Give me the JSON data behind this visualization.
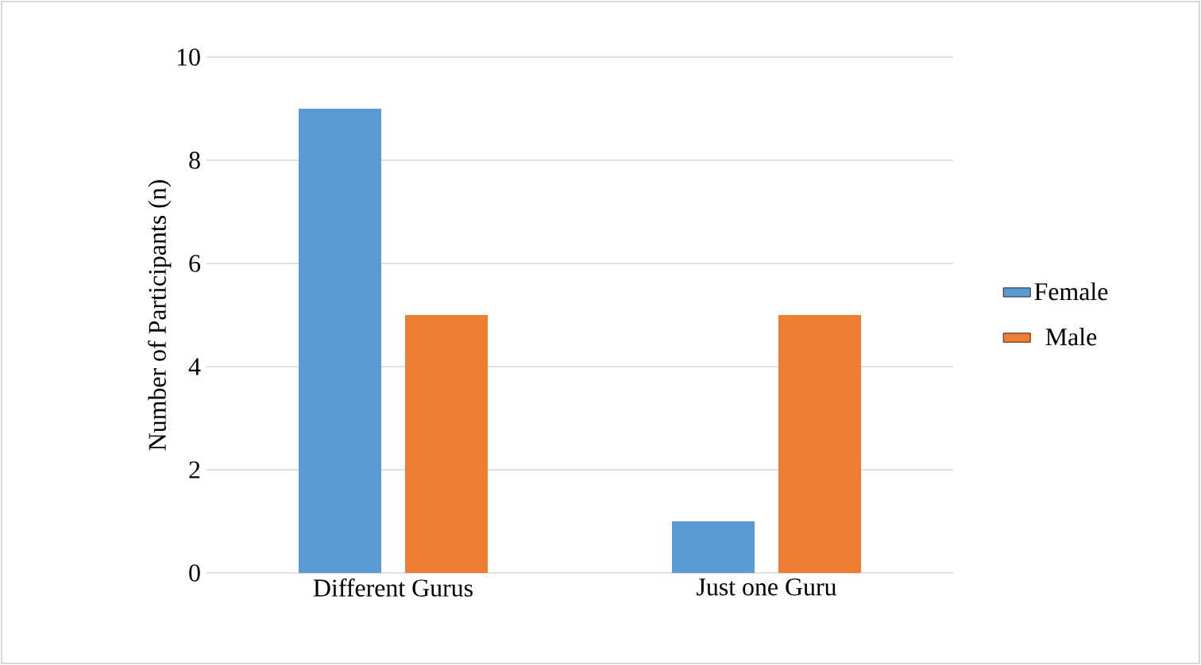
{
  "chart_data": {
    "type": "bar",
    "ylabel": "Number of Participants (n)",
    "categories": [
      "Different Gurus",
      "Just one Guru"
    ],
    "series": [
      {
        "name": "Female",
        "color": "#5b9bd5",
        "values": [
          9,
          1
        ]
      },
      {
        "name": "Male",
        "color": "#ed7d31",
        "values": [
          5,
          5
        ]
      }
    ],
    "ylim": [
      0,
      10
    ],
    "yticks": [
      0,
      2,
      4,
      6,
      8,
      10
    ],
    "grid": "y",
    "legend": "right"
  }
}
